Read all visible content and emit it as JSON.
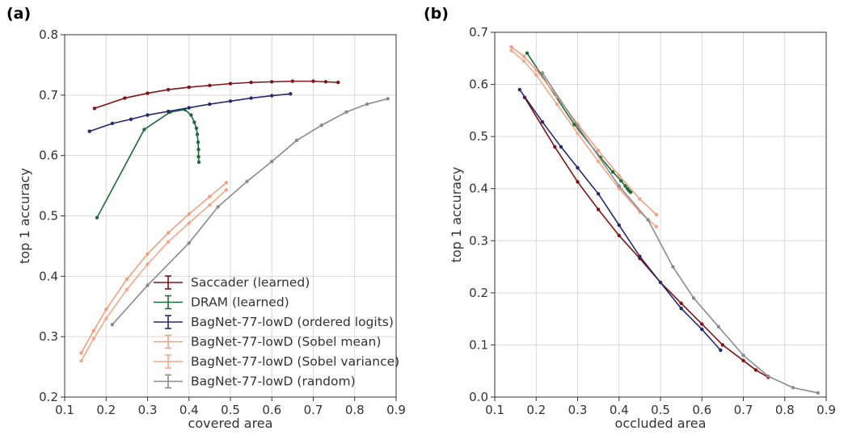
{
  "panels": [
    {
      "letter": "(a)"
    },
    {
      "letter": "(b)"
    }
  ],
  "series_styles": [
    {
      "key": "saccader",
      "color": "#7f1416"
    },
    {
      "key": "dram",
      "color": "#1f6b3a"
    },
    {
      "key": "ordered",
      "color": "#27296d"
    },
    {
      "key": "sobel_mean",
      "color": "#f0a080"
    },
    {
      "key": "sobel_var",
      "color": "#f2a88a"
    },
    {
      "key": "random",
      "color": "#8c8c8c"
    }
  ],
  "chart_data": [
    {
      "type": "line",
      "panel": "(a)",
      "title": "",
      "xlabel": "covered area",
      "ylabel": "top 1 accuracy",
      "xlim": [
        0.1,
        0.9
      ],
      "ylim": [
        0.2,
        0.8
      ],
      "xticks": [
        "0.1",
        "0.2",
        "0.3",
        "0.4",
        "0.5",
        "0.6",
        "0.7",
        "0.8",
        "0.9"
      ],
      "yticks": [
        "0.2",
        "0.3",
        "0.4",
        "0.5",
        "0.6",
        "0.7",
        "0.8"
      ],
      "grid": true,
      "legend_position": "bottom-center",
      "series": [
        {
          "name": "Saccader (learned)",
          "x": [
            0.172,
            0.245,
            0.3,
            0.35,
            0.4,
            0.45,
            0.5,
            0.55,
            0.6,
            0.65,
            0.7,
            0.73,
            0.76
          ],
          "y": [
            0.678,
            0.695,
            0.703,
            0.709,
            0.713,
            0.716,
            0.719,
            0.721,
            0.722,
            0.723,
            0.723,
            0.722,
            0.721
          ]
        },
        {
          "name": "DRAM (learned)",
          "x": [
            0.178,
            0.292,
            0.355,
            0.39,
            0.405,
            0.413,
            0.418,
            0.42,
            0.422,
            0.423,
            0.423,
            0.424
          ],
          "y": [
            0.497,
            0.643,
            0.672,
            0.676,
            0.667,
            0.655,
            0.645,
            0.635,
            0.622,
            0.61,
            0.598,
            0.589
          ]
        },
        {
          "name": "BagNet-77-lowD (ordered logits)",
          "x": [
            0.16,
            0.215,
            0.26,
            0.3,
            0.35,
            0.4,
            0.45,
            0.5,
            0.55,
            0.6,
            0.645
          ],
          "y": [
            0.64,
            0.653,
            0.66,
            0.667,
            0.673,
            0.679,
            0.685,
            0.69,
            0.695,
            0.699,
            0.702
          ]
        },
        {
          "name": "BagNet-77-lowD (Sobel mean)",
          "x": [
            0.14,
            0.17,
            0.2,
            0.25,
            0.3,
            0.35,
            0.4,
            0.45,
            0.49
          ],
          "y": [
            0.273,
            0.31,
            0.345,
            0.395,
            0.437,
            0.472,
            0.503,
            0.532,
            0.555
          ]
        },
        {
          "name": "BagNet-77-lowD (Sobel variance)",
          "x": [
            0.14,
            0.17,
            0.2,
            0.25,
            0.3,
            0.35,
            0.4,
            0.45,
            0.49
          ],
          "y": [
            0.26,
            0.297,
            0.33,
            0.378,
            0.42,
            0.457,
            0.488,
            0.518,
            0.543
          ]
        },
        {
          "name": "BagNet-77-lowD (random)",
          "x": [
            0.215,
            0.3,
            0.4,
            0.47,
            0.54,
            0.6,
            0.66,
            0.72,
            0.78,
            0.83,
            0.88
          ],
          "y": [
            0.32,
            0.385,
            0.455,
            0.515,
            0.557,
            0.59,
            0.625,
            0.65,
            0.672,
            0.685,
            0.694
          ]
        }
      ]
    },
    {
      "type": "line",
      "panel": "(b)",
      "title": "",
      "xlabel": "occluded area",
      "ylabel": "top 1 accuracy",
      "xlim": [
        0.1,
        0.9
      ],
      "ylim": [
        0.0,
        0.7
      ],
      "xticks": [
        "0.1",
        "0.2",
        "0.3",
        "0.4",
        "0.5",
        "0.6",
        "0.7",
        "0.8",
        "0.9"
      ],
      "yticks": [
        "0.0",
        "0.1",
        "0.2",
        "0.3",
        "0.4",
        "0.5",
        "0.6",
        "0.7"
      ],
      "grid": true,
      "series": [
        {
          "name": "Saccader (learned)",
          "x": [
            0.172,
            0.245,
            0.3,
            0.35,
            0.4,
            0.45,
            0.5,
            0.55,
            0.6,
            0.65,
            0.7,
            0.73,
            0.76
          ],
          "y": [
            0.575,
            0.48,
            0.413,
            0.36,
            0.31,
            0.266,
            0.22,
            0.18,
            0.14,
            0.1,
            0.07,
            0.052,
            0.038
          ]
        },
        {
          "name": "DRAM (learned)",
          "x": [
            0.178,
            0.292,
            0.355,
            0.385,
            0.405,
            0.415,
            0.42,
            0.424,
            0.428
          ],
          "y": [
            0.66,
            0.523,
            0.46,
            0.432,
            0.415,
            0.405,
            0.4,
            0.396,
            0.393
          ]
        },
        {
          "name": "BagNet-77-lowD (ordered logits)",
          "x": [
            0.16,
            0.215,
            0.26,
            0.3,
            0.35,
            0.4,
            0.45,
            0.5,
            0.55,
            0.6,
            0.645
          ],
          "y": [
            0.59,
            0.528,
            0.48,
            0.44,
            0.39,
            0.33,
            0.27,
            0.22,
            0.17,
            0.13,
            0.09
          ]
        },
        {
          "name": "BagNet-77-lowD (Sobel mean)",
          "x": [
            0.14,
            0.17,
            0.2,
            0.25,
            0.3,
            0.35,
            0.4,
            0.45,
            0.49
          ],
          "y": [
            0.672,
            0.654,
            0.628,
            0.577,
            0.524,
            0.473,
            0.425,
            0.38,
            0.35
          ]
        },
        {
          "name": "BagNet-77-lowD (Sobel variance)",
          "x": [
            0.14,
            0.17,
            0.2,
            0.25,
            0.3,
            0.35,
            0.4,
            0.45,
            0.49
          ],
          "y": [
            0.665,
            0.645,
            0.618,
            0.562,
            0.506,
            0.452,
            0.4,
            0.355,
            0.327
          ]
        },
        {
          "name": "BagNet-77-lowD (random)",
          "x": [
            0.215,
            0.3,
            0.4,
            0.47,
            0.53,
            0.58,
            0.64,
            0.7,
            0.76,
            0.82,
            0.88
          ],
          "y": [
            0.622,
            0.52,
            0.405,
            0.34,
            0.25,
            0.19,
            0.135,
            0.08,
            0.04,
            0.018,
            0.008
          ]
        }
      ]
    }
  ]
}
